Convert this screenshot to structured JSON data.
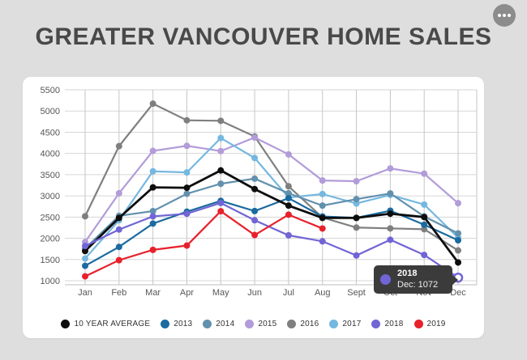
{
  "header": {
    "title": "GREATER VANCOUVER HOME SALES",
    "menu_icon": "ellipsis-icon"
  },
  "colors": {
    "page_bg": "#dedede",
    "card_bg": "#ffffff",
    "title_text": "#494949",
    "tooltip_bg": "#3b3b3b",
    "menu_button_bg": "#8c8c8c"
  },
  "chart_data": {
    "type": "line",
    "title": "GREATER VANCOUVER HOME SALES",
    "categories": [
      "Jan",
      "Feb",
      "Mar",
      "Apr",
      "May",
      "Jun",
      "Jul",
      "Aug",
      "Sept",
      "Oct",
      "Nov",
      "Dec"
    ],
    "yticks": [
      5500,
      5000,
      4500,
      4000,
      3500,
      3000,
      2500,
      2000,
      1500,
      1000
    ],
    "ylim": [
      1000,
      5500
    ],
    "grid": true,
    "legend_position": "bottom",
    "series": [
      {
        "name": "10 YEAR AVERAGE",
        "color": "#0d0d0d",
        "values": [
          1700,
          2480,
          3200,
          3190,
          3600,
          3160,
          2770,
          2480,
          2480,
          2580,
          2500,
          1430
        ]
      },
      {
        "name": "2013",
        "color": "#1b6aa0",
        "values": [
          1351,
          1797,
          2347,
          2627,
          2882,
          2642,
          2946,
          2514,
          2483,
          2650,
          2321,
          1953
        ]
      },
      {
        "name": "2014",
        "color": "#6290ad",
        "values": [
          1760,
          2530,
          2641,
          3050,
          3286,
          3406,
          3061,
          2771,
          2922,
          3057,
          2516,
          2116
        ]
      },
      {
        "name": "2015",
        "color": "#b29cd9",
        "values": [
          1913,
          3061,
          4060,
          4179,
          4056,
          4375,
          3978,
          3362,
          3345,
          3646,
          3524,
          2827
        ]
      },
      {
        "name": "2016",
        "color": "#7f7f7f",
        "values": [
          2519,
          4172,
          5173,
          4781,
          4769,
          4400,
          3226,
          2489,
          2253,
          2233,
          2214,
          1714
        ]
      },
      {
        "name": "2017",
        "color": "#74b8e0",
        "values": [
          1523,
          2425,
          3579,
          3553,
          4364,
          3893,
          2960,
          3043,
          2821,
          3022,
          2795,
          2016
        ]
      },
      {
        "name": "2018",
        "color": "#7165d6",
        "values": [
          1818,
          2207,
          2517,
          2579,
          2833,
          2425,
          2070,
          1929,
          1595,
          1966,
          1608,
          1072
        ],
        "highlight_index": 11
      },
      {
        "name": "2019",
        "color": "#e7212b",
        "values": [
          1103,
          1484,
          1727,
          1829,
          2638,
          2077,
          2557,
          2231,
          null,
          null,
          null,
          null
        ]
      }
    ],
    "highlight": {
      "series": "2018",
      "category": "Dec",
      "value": 1072
    },
    "tooltip": {
      "series": "2018",
      "label": "Dec: 1072",
      "color": "#7165d6"
    }
  }
}
